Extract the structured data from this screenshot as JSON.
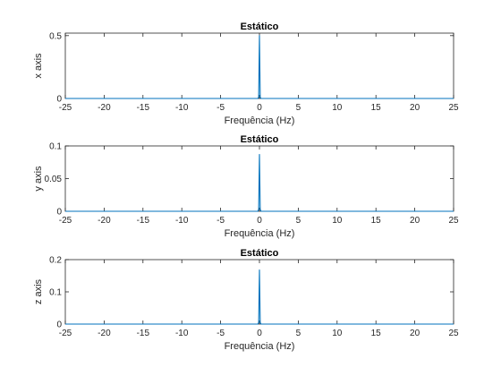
{
  "window": {
    "background": "#ffffff"
  },
  "chart_data": [
    {
      "type": "line",
      "title": "Estático",
      "xlabel": "Frequência (Hz)",
      "ylabel": "x axis",
      "xlim": [
        -25,
        25
      ],
      "ylim": [
        0,
        0.52
      ],
      "xticks": [
        -25,
        -20,
        -15,
        -10,
        -5,
        0,
        5,
        10,
        15,
        20,
        25
      ],
      "xtick_labels": [
        "-25",
        "-20",
        "-15",
        "-10",
        "-5",
        "0",
        "5",
        "10",
        "15",
        "20",
        "25"
      ],
      "yticks": [
        0,
        0.5
      ],
      "ytick_labels": [
        "0",
        "0.5"
      ],
      "grid": false,
      "color": "#0072bd",
      "series": [
        {
          "x": [
            -25,
            -0.2,
            -0.1,
            0,
            0.1,
            0.2,
            25
          ],
          "y": [
            0,
            0,
            0.01,
            0.5,
            0.01,
            0,
            0
          ]
        }
      ]
    },
    {
      "type": "line",
      "title": "Estático",
      "xlabel": "Frequência (Hz)",
      "ylabel": "y axis",
      "xlim": [
        -25,
        25
      ],
      "ylim": [
        0,
        0.1
      ],
      "xticks": [
        -25,
        -20,
        -15,
        -10,
        -5,
        0,
        5,
        10,
        15,
        20,
        25
      ],
      "xtick_labels": [
        "-25",
        "-20",
        "-15",
        "-10",
        "-5",
        "0",
        "5",
        "10",
        "15",
        "20",
        "25"
      ],
      "yticks": [
        0,
        0.05,
        0.1
      ],
      "ytick_labels": [
        "0",
        "0.05",
        "0.1"
      ],
      "grid": false,
      "color": "#0072bd",
      "series": [
        {
          "x": [
            -25,
            -0.2,
            -0.1,
            0,
            0.1,
            0.2,
            25
          ],
          "y": [
            0,
            0,
            0.003,
            0.087,
            0.003,
            0,
            0
          ]
        }
      ]
    },
    {
      "type": "line",
      "title": "Estático",
      "xlabel": "Frequência (Hz)",
      "ylabel": "z axis",
      "xlim": [
        -25,
        25
      ],
      "ylim": [
        0,
        0.2
      ],
      "xticks": [
        -25,
        -20,
        -15,
        -10,
        -5,
        0,
        5,
        10,
        15,
        20,
        25
      ],
      "xtick_labels": [
        "-25",
        "-20",
        "-15",
        "-10",
        "-5",
        "0",
        "5",
        "10",
        "15",
        "20",
        "25"
      ],
      "yticks": [
        0,
        0.1,
        0.2
      ],
      "ytick_labels": [
        "0",
        "0.1",
        "0.2"
      ],
      "grid": false,
      "color": "#0072bd",
      "series": [
        {
          "x": [
            -25,
            -0.2,
            -0.1,
            0,
            0.1,
            0.2,
            25
          ],
          "y": [
            0,
            0,
            0.005,
            0.168,
            0.005,
            0,
            0
          ]
        }
      ]
    }
  ]
}
